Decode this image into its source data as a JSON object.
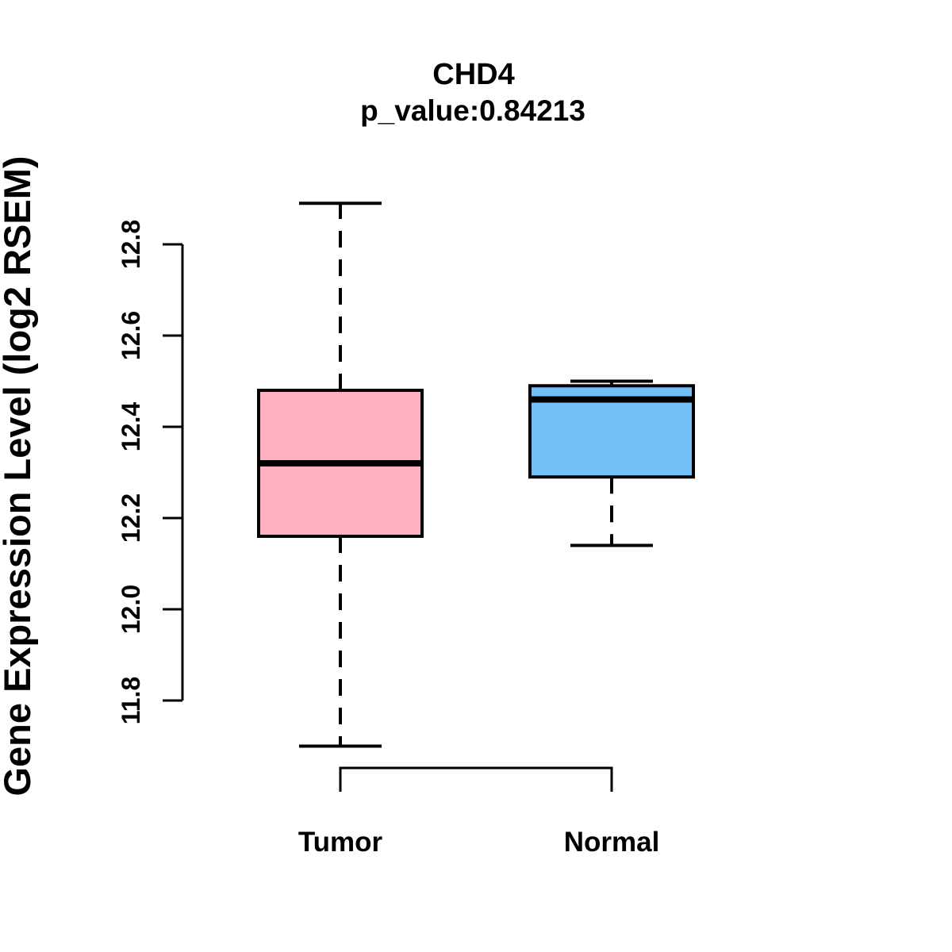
{
  "chart_data": {
    "type": "boxplot",
    "title": "CHD4",
    "subtitle": "p_value:0.84213",
    "ylabel": "Gene Expression Level (log2 RSEM)",
    "xlabel": "",
    "categories": [
      "Tumor",
      "Normal"
    ],
    "y_axis": {
      "min": 11.8,
      "max": 12.8,
      "ticks": [
        11.8,
        12.0,
        12.2,
        12.4,
        12.6,
        12.8
      ],
      "tick_decimals": 1
    },
    "groups": [
      {
        "label": "Tumor",
        "fill_color": "#FFB0C0",
        "whisker_low": 11.7,
        "q1": 12.16,
        "median": 12.32,
        "q3": 12.48,
        "whisker_high": 12.89
      },
      {
        "label": "Normal",
        "fill_color": "#73BFF7",
        "whisker_low": 12.14,
        "q1": 12.29,
        "median": 12.46,
        "q3": 12.49,
        "whisker_high": 12.5
      }
    ],
    "grid": false,
    "legend_position": "none",
    "colors": {
      "background": "#FFFFFF",
      "box_border": "#000000",
      "median_line": "#000000",
      "axis": "#000000",
      "text": "#000000"
    }
  }
}
